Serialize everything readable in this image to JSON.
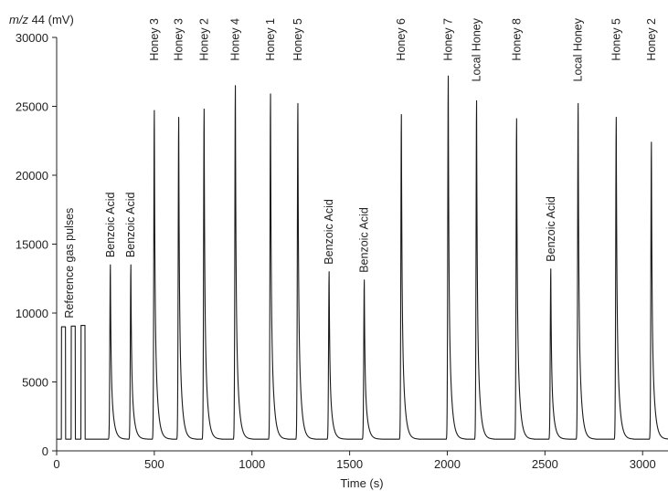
{
  "chart_data": {
    "type": "line",
    "xlabel": "Time (s)",
    "ylabel_italic": "m/z",
    "ylabel_rest": " 44 (mV)",
    "xlim": [
      0,
      3130
    ],
    "ylim": [
      0,
      30000
    ],
    "x_ticks": [
      0,
      500,
      1000,
      1500,
      2000,
      2500,
      3000
    ],
    "y_ticks": [
      0,
      5000,
      10000,
      15000,
      20000,
      25000,
      30000
    ],
    "grid": false,
    "baseline": 850,
    "reference_pulses": [
      {
        "start": 25,
        "end": 45,
        "height": 9000
      },
      {
        "start": 75,
        "end": 95,
        "height": 9050
      },
      {
        "start": 125,
        "end": 145,
        "height": 9100
      }
    ],
    "peaks": [
      {
        "label": "Benzoic Acid",
        "time": 275,
        "height": 13500
      },
      {
        "label": "Benzoic Acid",
        "time": 380,
        "height": 13500
      },
      {
        "label": "Honey 3",
        "time": 500,
        "height": 24700
      },
      {
        "label": "Honey 3",
        "time": 625,
        "height": 24200
      },
      {
        "label": "Honey 2",
        "time": 755,
        "height": 24800
      },
      {
        "label": "Honey 4",
        "time": 915,
        "height": 26500
      },
      {
        "label": "Honey 1",
        "time": 1095,
        "height": 25900
      },
      {
        "label": "Honey 5",
        "time": 1235,
        "height": 25200
      },
      {
        "label": "Benzoic Acid",
        "time": 1395,
        "height": 13000
      },
      {
        "label": "Benzoic Acid",
        "time": 1575,
        "height": 12400
      },
      {
        "label": "Honey 6",
        "time": 1765,
        "height": 24400
      },
      {
        "label": "Honey 7",
        "time": 2005,
        "height": 27200
      },
      {
        "label": "Local Honey",
        "time": 2150,
        "height": 25400
      },
      {
        "label": "Honey 8",
        "time": 2355,
        "height": 24100
      },
      {
        "label": "Benzoic Acid",
        "time": 2530,
        "height": 13200
      },
      {
        "label": "Local Honey",
        "time": 2670,
        "height": 25200
      },
      {
        "label": "Honey 5",
        "time": 2865,
        "height": 24200
      },
      {
        "label": "Honey 2",
        "time": 3045,
        "height": 22400
      }
    ],
    "annotation": "Reference gas pulses"
  }
}
